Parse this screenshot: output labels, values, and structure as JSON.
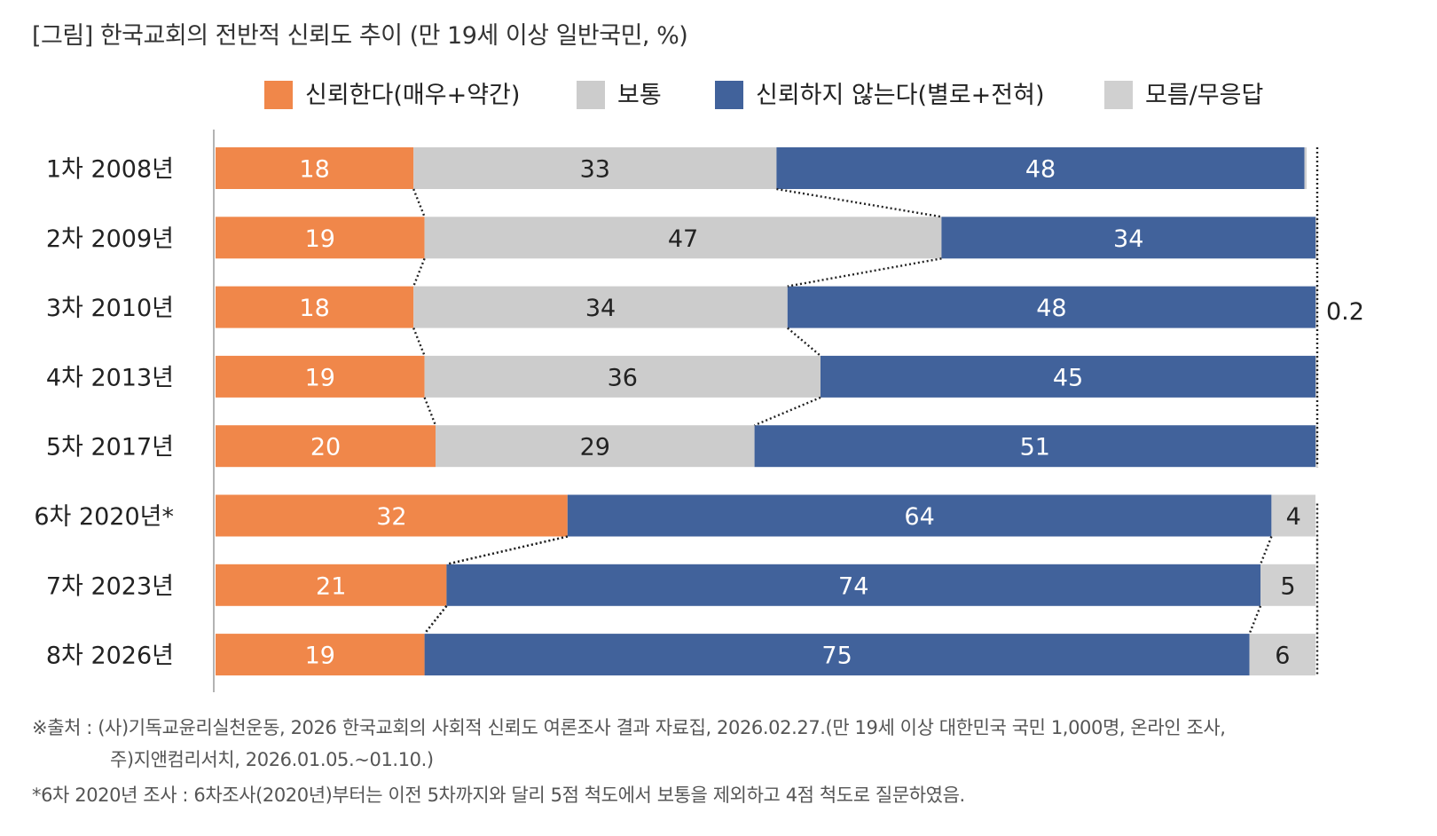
{
  "title": "[그림] 한국교회의 전반적 신뢰도 추이 (만 19세 이상 일반국민, %)",
  "colors": {
    "trust": "#F0874A",
    "neutral": "#CCCCCC",
    "distrust": "#41629B",
    "dontknow": "#D0D0D0"
  },
  "chart_data": {
    "type": "bar",
    "orientation": "horizontal-stacked",
    "title": "[그림] 한국교회의 전반적 신뢰도 추이 (만 19세 이상 일반국민, %)",
    "legend": [
      "신뢰한다(매우+약간)",
      "보통",
      "신뢰하지 않는다(별로+전혀)",
      "모름/무응답"
    ],
    "legend_position": "top",
    "categories": [
      "1차 2008년",
      "2차 2009년",
      "3차 2010년",
      "4차 2013년",
      "5차 2017년",
      "6차 2020년*",
      "7차 2023년",
      "8차 2026년"
    ],
    "series": [
      {
        "name": "신뢰한다(매우+약간)",
        "key": "trust",
        "values": [
          18,
          19,
          18,
          19,
          20,
          32,
          21,
          19
        ]
      },
      {
        "name": "보통",
        "key": "neutral",
        "values": [
          33,
          47,
          34,
          36,
          29,
          null,
          null,
          null
        ]
      },
      {
        "name": "신뢰하지 않는다(별로+전혀)",
        "key": "distrust",
        "values": [
          48,
          34,
          48,
          45,
          51,
          64,
          74,
          75
        ]
      },
      {
        "name": "모름/무응답",
        "key": "dontknow",
        "values": [
          0.2,
          0.2,
          0.2,
          0.2,
          0.2,
          4,
          5,
          6
        ]
      }
    ],
    "segment_labels": [
      [
        "18",
        "33",
        "48",
        ""
      ],
      [
        "19",
        "47",
        "34",
        ""
      ],
      [
        "18",
        "34",
        "48",
        ""
      ],
      [
        "19",
        "36",
        "45",
        ""
      ],
      [
        "20",
        "29",
        "51",
        ""
      ],
      [
        "32",
        "",
        "64",
        "4"
      ],
      [
        "21",
        "",
        "74",
        "5"
      ],
      [
        "19",
        "",
        "75",
        "6"
      ]
    ],
    "bracket_label": "0.2",
    "xlim": [
      0,
      100
    ]
  },
  "footnotes": {
    "source_line1": "※출처 : (사)기독교윤리실천운동, 2026 한국교회의 사회적 신뢰도 여론조사 결과 자료집, 2026.02.27.(만 19세 이상 대한민국 국민 1,000명, 온라인 조사,",
    "source_line2": "주)지앤컴리서치, 2026.01.05.~01.10.)",
    "note": "*6차 2020년 조사 : 6차조사(2020년)부터는 이전 5차까지와 달리 5점 척도에서 보통을 제외하고 4점 척도로 질문하였음."
  }
}
